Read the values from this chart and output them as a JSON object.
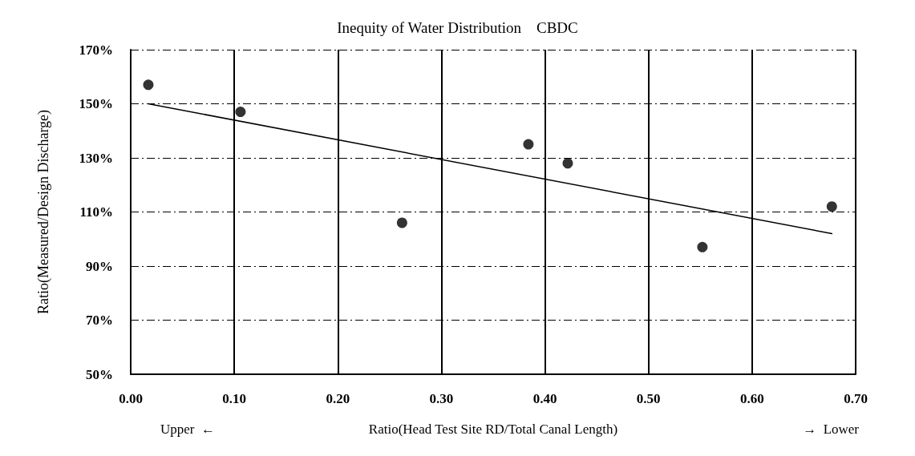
{
  "chart_data": {
    "type": "scatter",
    "title": "Inequity of Water Distribution    CBDC",
    "xlabel": "Ratio(Head Test Site RD/Total Canal Length)",
    "ylabel": "Ratio(Measured/Design Discharge)",
    "annotations": [
      "Upper  ←",
      "→  Lower"
    ],
    "series": [
      {
        "color": "#000000",
        "marker": "circle",
        "x": [
          0.017,
          0.106,
          0.262,
          0.384,
          0.422,
          0.552,
          0.677
        ],
        "values": [
          157,
          147,
          106,
          135,
          128,
          97,
          112
        ]
      },
      {
        "type": "line",
        "color": "#000000",
        "marker": "none",
        "line_style": "solid",
        "x": [
          0.017,
          0.677
        ],
        "values": [
          150,
          102
        ]
      }
    ],
    "xlim": [
      0,
      0.7
    ],
    "xticks": [
      {
        "value": 0,
        "label": "0.00"
      },
      {
        "value": 0.1,
        "label": "0.10"
      },
      {
        "value": 0.2,
        "label": "0.20"
      },
      {
        "value": 0.3,
        "label": "0.30"
      },
      {
        "value": 0.4,
        "label": "0.40"
      },
      {
        "value": 0.5,
        "label": "0.50"
      },
      {
        "value": 0.6,
        "label": "0.60"
      },
      {
        "value": 0.7,
        "label": "0.70"
      }
    ],
    "ylim": [
      50,
      170
    ],
    "yticks": [
      {
        "value": 50,
        "label": "50%"
      },
      {
        "value": 70,
        "label": "70%"
      },
      {
        "value": 90,
        "label": "90%"
      },
      {
        "value": 110,
        "label": "110%"
      },
      {
        "value": 130,
        "label": "130%"
      },
      {
        "value": 150,
        "label": "150%"
      },
      {
        "value": 170,
        "label": "170%"
      }
    ],
    "grid": true
  }
}
